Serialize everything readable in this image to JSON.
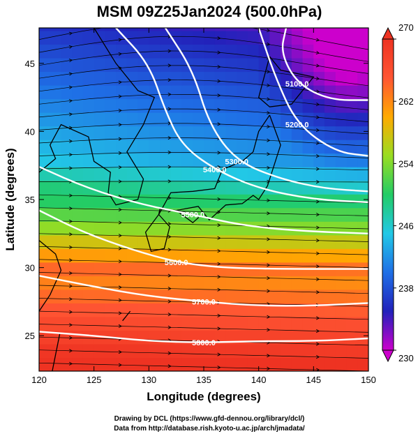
{
  "chart_data": {
    "type": "heatmap",
    "title": "MSM 09Z25Jan2024 (500.0hPa)",
    "xlabel": "Longitude (degrees)",
    "ylabel": "Latitude  (degrees)",
    "xlim": [
      120,
      150
    ],
    "ylim": [
      22.4,
      47.6
    ],
    "xticks": [
      120,
      125,
      130,
      135,
      140,
      145,
      150
    ],
    "yticks": [
      25,
      30,
      35,
      40,
      45
    ],
    "fill_variable": "temperature (K)",
    "colorbar": {
      "range": [
        230,
        270
      ],
      "ticks": [
        230,
        238,
        246,
        254,
        262,
        270
      ],
      "stops": [
        "#cc00cc",
        "#2222bb",
        "#1f6fe6",
        "#22c8e6",
        "#22cc66",
        "#99dd22",
        "#ffaa00",
        "#ff5533",
        "#ee3322"
      ]
    },
    "contours": [
      {
        "label": "5100.0",
        "points": [
          [
            142.5,
            47.6
          ],
          [
            142.0,
            45.8
          ],
          [
            143.5,
            43.5
          ],
          [
            146.5,
            42.3
          ],
          [
            150,
            42.3
          ]
        ]
      },
      {
        "label": "5200.0",
        "points": [
          [
            140.0,
            47.6
          ],
          [
            141.5,
            44.0
          ],
          [
            143.5,
            40.5
          ],
          [
            147.0,
            38.5
          ],
          [
            150,
            38.2
          ]
        ]
      },
      {
        "label": "5300.0",
        "points": [
          [
            131.5,
            47.6
          ],
          [
            134.0,
            44.5
          ],
          [
            135.5,
            40.5
          ],
          [
            138.0,
            37.8
          ],
          [
            142.0,
            36.5
          ],
          [
            146.0,
            35.8
          ],
          [
            150,
            35.6
          ]
        ]
      },
      {
        "label": "5400.0",
        "points": [
          [
            127.0,
            47.6
          ],
          [
            130.0,
            45.0
          ],
          [
            131.5,
            41.5
          ],
          [
            133.0,
            39.0
          ],
          [
            136.0,
            37.2
          ],
          [
            140.0,
            35.8
          ],
          [
            145.0,
            35.0
          ],
          [
            150,
            34.8
          ]
        ]
      },
      {
        "label": "5500.0",
        "points": [
          [
            120,
            37.4
          ],
          [
            124.5,
            35.8
          ],
          [
            129.5,
            34.6
          ],
          [
            134.0,
            33.9
          ],
          [
            138.5,
            33.1
          ],
          [
            143.5,
            32.7
          ],
          [
            150,
            32.5
          ]
        ]
      },
      {
        "label": "5600.0",
        "points": [
          [
            120,
            34.2
          ],
          [
            124.0,
            32.6
          ],
          [
            128.5,
            31.3
          ],
          [
            132.5,
            30.4
          ],
          [
            136.5,
            30.0
          ],
          [
            141.5,
            29.9
          ],
          [
            150,
            29.9
          ]
        ]
      },
      {
        "label": "5700.0",
        "points": [
          [
            120,
            29.4
          ],
          [
            125.0,
            28.6
          ],
          [
            130.0,
            27.9
          ],
          [
            135.0,
            27.5
          ],
          [
            140.0,
            27.2
          ],
          [
            145.0,
            27.2
          ],
          [
            150,
            27.4
          ]
        ]
      },
      {
        "label": "5800.0",
        "points": [
          [
            120,
            25.3
          ],
          [
            125.0,
            25.0
          ],
          [
            130.0,
            24.6
          ],
          [
            135.0,
            24.5
          ],
          [
            140.0,
            24.6
          ],
          [
            145.0,
            24.6
          ],
          [
            150,
            24.8
          ]
        ]
      }
    ]
  },
  "credits": {
    "line1": "Drawing by DCL (https://www.gfd-dennou.org/library/dcl/)",
    "line2": "Data from http://database.rish.kyoto-u.ac.jp/arch/jmadata/"
  },
  "colors": {
    "contour": "#ffffff",
    "coast": "#000000",
    "streamline": "#000000"
  }
}
